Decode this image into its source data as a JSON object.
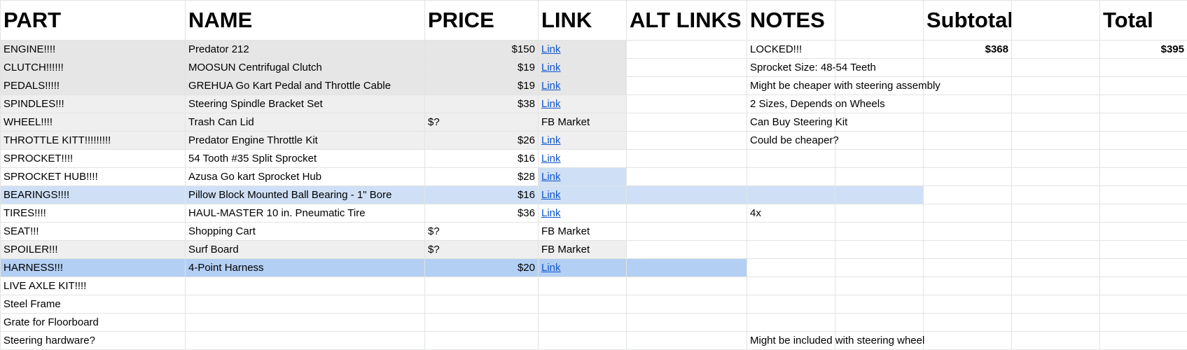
{
  "headers": [
    "PART",
    "NAME",
    "PRICE",
    "LINK",
    "ALT LINKS",
    "NOTES",
    "",
    "Subtotal",
    "",
    "Total"
  ],
  "totals": {
    "subtotal": "$368",
    "total": "$395"
  },
  "rows": [
    {
      "part": "ENGINE!!!!",
      "name": "Predator 212",
      "price": "$150",
      "link": "Link",
      "note": "LOCKED!!!"
    },
    {
      "part": "CLUTCH!!!!!!",
      "name": "MOOSUN Centrifugal Clutch",
      "price": "$19",
      "link": "Link",
      "note": "Sprocket Size: 48-54 Teeth"
    },
    {
      "part": "PEDALS!!!!!",
      "name": "GREHUA Go Kart Pedal and Throttle Cable",
      "price": "$19",
      "link": "Link",
      "note": "Might be cheaper with steering assembly"
    },
    {
      "part": "SPINDLES!!!",
      "name": "Steering Spindle Bracket Set",
      "price": "$38",
      "link": "Link",
      "note": "2 Sizes, Depends on Wheels"
    },
    {
      "part": "WHEEL!!!!",
      "name": "Trash Can Lid",
      "price": "$?",
      "link": "FB Market",
      "note": "Can Buy Steering Kit"
    },
    {
      "part": "THROTTLE KITT!!!!!!!!!",
      "name": "Predator Engine Throttle Kit",
      "price": "$26",
      "link": "Link",
      "note": "Could be cheaper?"
    },
    {
      "part": "SPROCKET!!!!",
      "name": "54 Tooth #35 Split Sprocket",
      "price": "$16",
      "link": "Link",
      "note": ""
    },
    {
      "part": "SPROCKET HUB!!!!",
      "name": "Azusa Go kart Sprocket Hub",
      "price": "$28",
      "link": "Link",
      "note": ""
    },
    {
      "part": "BEARINGS!!!!",
      "name": "Pillow Block Mounted Ball Bearing - 1\" Bore",
      "price": "$16",
      "link": "Link",
      "note": ""
    },
    {
      "part": "TIRES!!!!",
      "name": "HAUL-MASTER 10 in. Pneumatic Tire",
      "price": "$36",
      "link": "Link",
      "note": "4x"
    },
    {
      "part": "SEAT!!!",
      "name": "Shopping Cart",
      "price": "$?",
      "link": "FB Market",
      "note": ""
    },
    {
      "part": "SPOILER!!!",
      "name": "Surf Board",
      "price": "$?",
      "link": "FB Market",
      "note": ""
    },
    {
      "part": "HARNESS!!!",
      "name": "4-Point Harness",
      "price": "$20",
      "link": "Link",
      "note": ""
    },
    {
      "part": "LIVE AXLE KIT!!!!",
      "name": "",
      "price": "",
      "link": "",
      "note": ""
    },
    {
      "part": "Steel Frame",
      "name": "",
      "price": "",
      "link": "",
      "note": ""
    },
    {
      "part": "Grate for Floorboard",
      "name": "",
      "price": "",
      "link": "",
      "note": ""
    },
    {
      "part": "Steering hardware?",
      "name": "",
      "price": "",
      "link": "",
      "note": "Might be included with steering wheel"
    }
  ]
}
